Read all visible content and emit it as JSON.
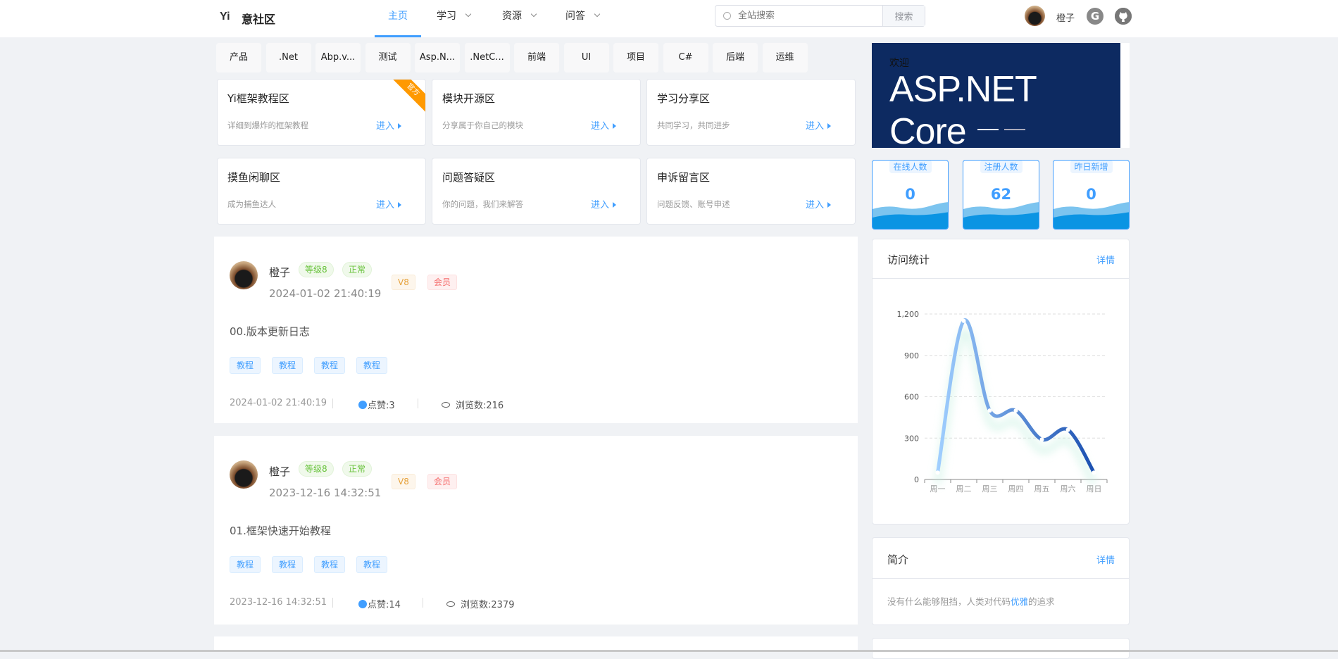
{
  "header": {
    "logo_mark": "Yi",
    "site_name": "意社区",
    "nav": [
      {
        "label": "主页",
        "active": true
      },
      {
        "label": "学习"
      },
      {
        "label": "资源"
      },
      {
        "label": "问答"
      }
    ],
    "search_placeholder": "全站搜索",
    "search_button": "搜索",
    "username": "橙子",
    "icons": [
      "gitee-icon",
      "github-icon"
    ]
  },
  "tags": [
    "产品",
    ".Net",
    "Abp.v...",
    "测试",
    "Asp.N...",
    ".NetC...",
    "前端",
    "UI",
    "项目",
    "C#",
    "后端",
    "运维"
  ],
  "plates": [
    {
      "title": "Yi框架教程区",
      "desc": "详细到爆炸的框架教程",
      "enter": "进入",
      "ribbon": "官方"
    },
    {
      "title": "模块开源区",
      "desc": "分享属于你自己的模块",
      "enter": "进入"
    },
    {
      "title": "学习分享区",
      "desc": "共同学习，共同进步",
      "enter": "进入"
    },
    {
      "title": "摸鱼闲聊区",
      "desc": "成为捕鱼达人",
      "enter": "进入"
    },
    {
      "title": "问题答疑区",
      "desc": "你的问题，我们来解答",
      "enter": "进入"
    },
    {
      "title": "申诉留言区",
      "desc": "问题反馈、账号申述",
      "enter": "进入"
    }
  ],
  "posts": [
    {
      "author": "橙子",
      "level": "等级8",
      "status": "正常",
      "vip": "V8",
      "member": "会员",
      "date": "2024-01-02 21:40:19",
      "title": "00.版本更新日志",
      "tags": [
        "教程",
        "教程",
        "教程",
        "教程"
      ],
      "footer_date": "2024-01-02 21:40:19",
      "likes": "点赞:3",
      "views": "浏览数:216"
    },
    {
      "author": "橙子",
      "level": "等级8",
      "status": "正常",
      "vip": "V8",
      "member": "会员",
      "date": "2023-12-16 14:32:51",
      "title": "01.框架快速开始教程",
      "tags": [
        "教程",
        "教程",
        "教程",
        "教程"
      ],
      "footer_date": "2023-12-16 14:32:51",
      "likes": "点赞:14",
      "views": "浏览数:2379"
    }
  ],
  "banner": {
    "welcome": "欢迎",
    "logo_text": "ASP.NET Core",
    "slides": 2,
    "active_slide": 1
  },
  "stats": [
    {
      "label": "在线人数",
      "value": "0"
    },
    {
      "label": "注册人数",
      "value": "62"
    },
    {
      "label": "昨日新增",
      "value": "0"
    }
  ],
  "visit_card": {
    "title": "访问统计",
    "more": "详情"
  },
  "intro_card": {
    "title": "简介",
    "more": "详情",
    "text_before": "没有什么能够阻挡，人类对代码",
    "highlight": "优雅",
    "text_after": "的追求"
  },
  "chart_data": {
    "type": "line",
    "smooth": true,
    "categories": [
      "周一",
      "周二",
      "周三",
      "周四",
      "周五",
      "周六",
      "周日"
    ],
    "values": [
      50,
      1150,
      500,
      500,
      290,
      360,
      50
    ],
    "ylim": [
      0,
      1200
    ],
    "yticks": [
      0,
      300,
      600,
      900,
      1200
    ],
    "ytick_labels": [
      "0",
      "300",
      "600",
      "900",
      "1,200"
    ],
    "grid": true,
    "colors": [
      "#a0cfff",
      "#1a4fb0"
    ]
  }
}
